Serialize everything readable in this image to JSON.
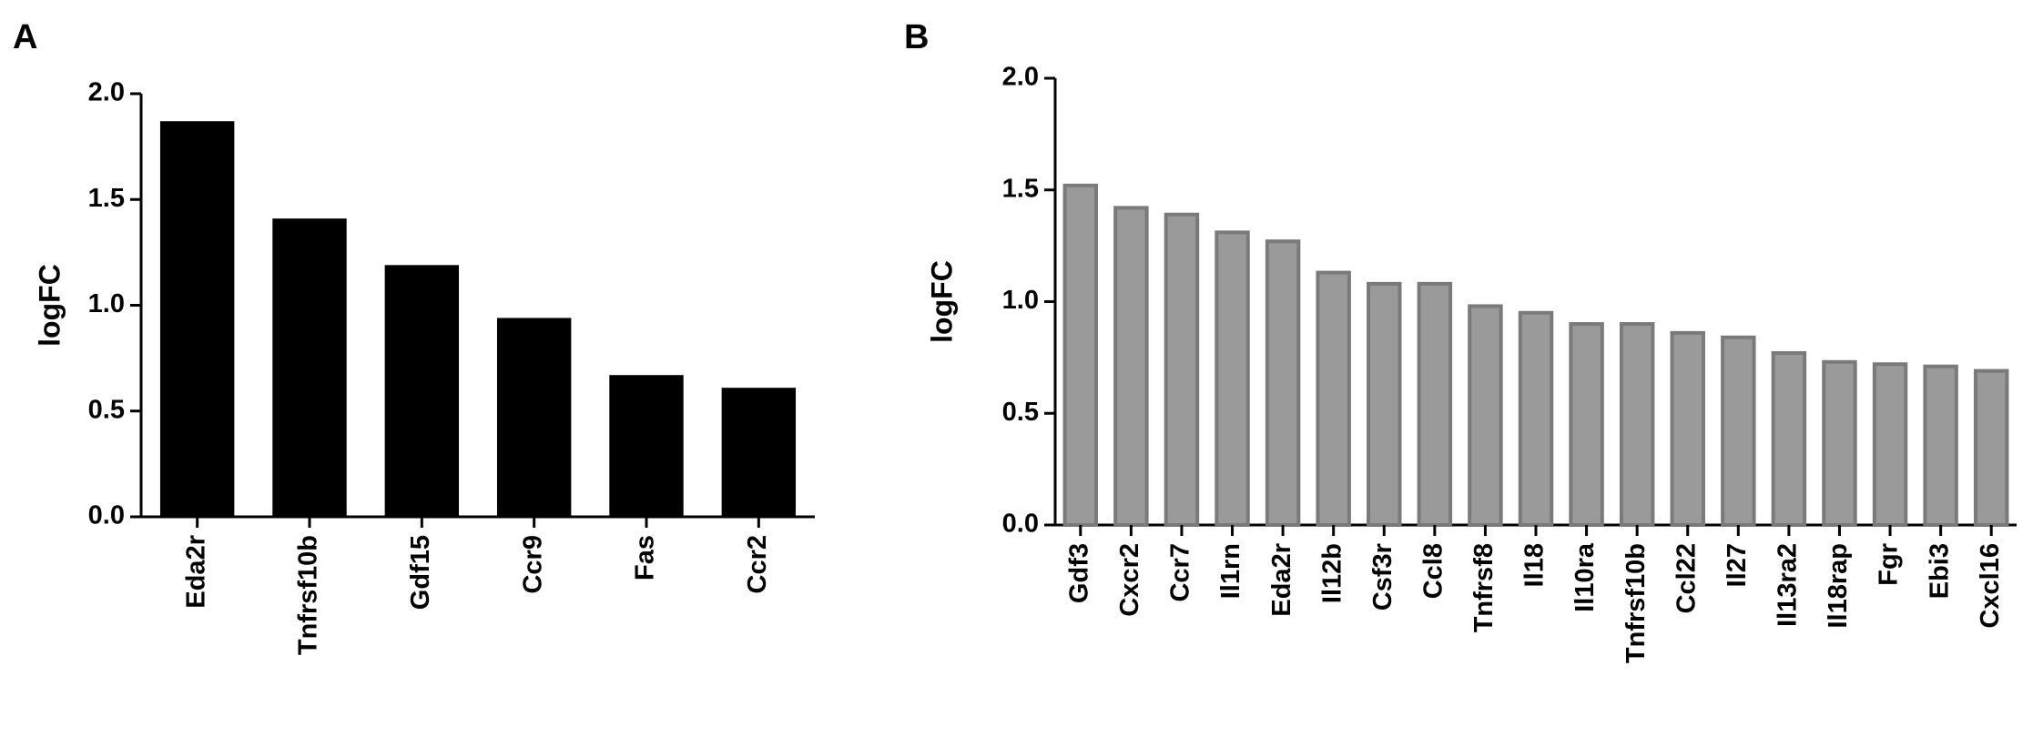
{
  "chart_data": [
    {
      "type": "bar",
      "panel_label": "A",
      "y_label": "logFC",
      "categories": [
        "Eda2r",
        "Tnfrsf10b",
        "Gdf15",
        "Ccr9",
        "Fas",
        "Ccr2"
      ],
      "values": [
        1.87,
        1.41,
        1.19,
        0.94,
        0.67,
        0.61
      ],
      "color": "#000000",
      "edge_color": "#000000",
      "ylim": [
        0,
        2
      ],
      "yticks": [
        {
          "value": 0,
          "label": "0.0"
        },
        0.5,
        {
          "value": 1,
          "label": "1.0"
        },
        1.5,
        {
          "value": 2,
          "label": "2.0"
        }
      ]
    },
    {
      "type": "bar",
      "panel_label": "B",
      "y_label": "logFC",
      "categories": [
        "Gdf3",
        "Cxcr2",
        "Ccr7",
        "Il1rn",
        "Eda2r",
        "Il12b",
        "Csf3r",
        "Ccl8",
        "Tnfrsf8",
        "Il18",
        "Il10ra",
        "Tnfrsf10b",
        "Ccl22",
        "Il27",
        "Il13ra2",
        "Il18rap",
        "Fgr",
        "Ebi3",
        "Cxcl16"
      ],
      "values": [
        1.52,
        1.42,
        1.39,
        1.31,
        1.27,
        1.13,
        1.08,
        1.08,
        0.98,
        0.95,
        0.9,
        0.9,
        0.86,
        0.84,
        0.77,
        0.73,
        0.72,
        0.71,
        0.69
      ],
      "color": "#9a9a9a",
      "edge_color": "#7a7a7a",
      "ylim": [
        0,
        2
      ],
      "yticks": [
        {
          "value": 0,
          "label": "0.0"
        },
        0.5,
        {
          "value": 1,
          "label": "1.0"
        },
        1.5,
        {
          "value": 2,
          "label": "2.0"
        }
      ]
    }
  ]
}
